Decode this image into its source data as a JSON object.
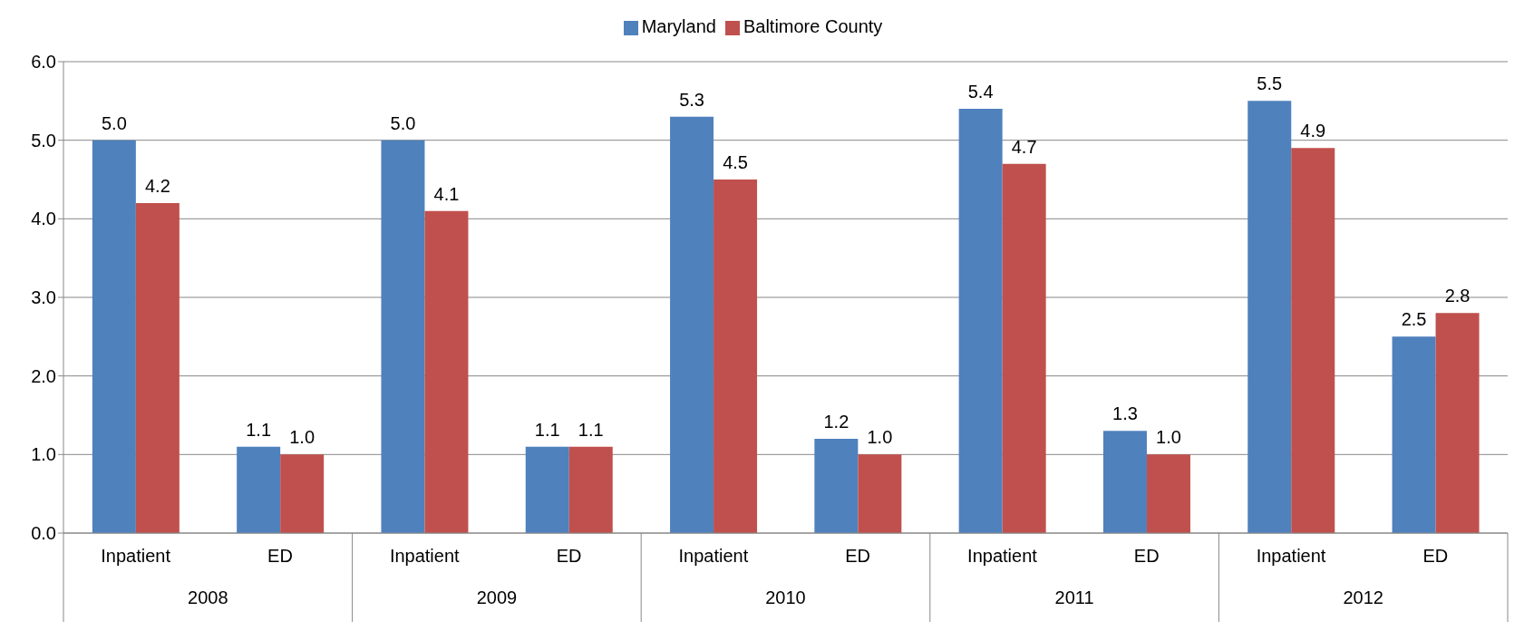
{
  "chart_data": {
    "type": "bar",
    "categories": [
      "Inpatient",
      "ED",
      "Inpatient",
      "ED",
      "Inpatient",
      "ED",
      "Inpatient",
      "ED",
      "Inpatient",
      "ED"
    ],
    "series": [
      {
        "name": "Maryland",
        "color": "#4f81bd",
        "values": [
          5.0,
          1.1,
          5.0,
          1.1,
          5.3,
          1.2,
          5.4,
          1.3,
          5.5,
          2.5
        ],
        "value_labels": [
          "5.0",
          "1.1",
          "5.0",
          "1.1",
          "5.3",
          "1.2",
          "5.4",
          "1.3",
          "5.5",
          "2.5"
        ]
      },
      {
        "name": "Baltimore County",
        "color": "#c0504d",
        "values": [
          4.2,
          1.0,
          4.1,
          1.1,
          4.5,
          1.0,
          4.7,
          1.0,
          4.9,
          2.8
        ],
        "value_labels": [
          "4.2",
          "1.0",
          "4.1",
          "1.1",
          "4.5",
          "1.0",
          "4.7",
          "1.0",
          "4.9",
          "2.8"
        ]
      }
    ],
    "annotations": [
      "2008",
      "2009",
      "2010",
      "2011",
      "2012"
    ],
    "ylim": [
      0,
      6
    ],
    "yticks": [
      {
        "value": 0,
        "label": "0.0"
      },
      {
        "value": 1,
        "label": "1.0"
      },
      {
        "value": 2,
        "label": "2.0"
      },
      {
        "value": 3,
        "label": "3.0"
      },
      {
        "value": 4,
        "label": "4.0"
      },
      {
        "value": 5,
        "label": "5.0"
      },
      {
        "value": 6,
        "label": "6.0"
      }
    ],
    "grid": "y",
    "legend": "top"
  }
}
